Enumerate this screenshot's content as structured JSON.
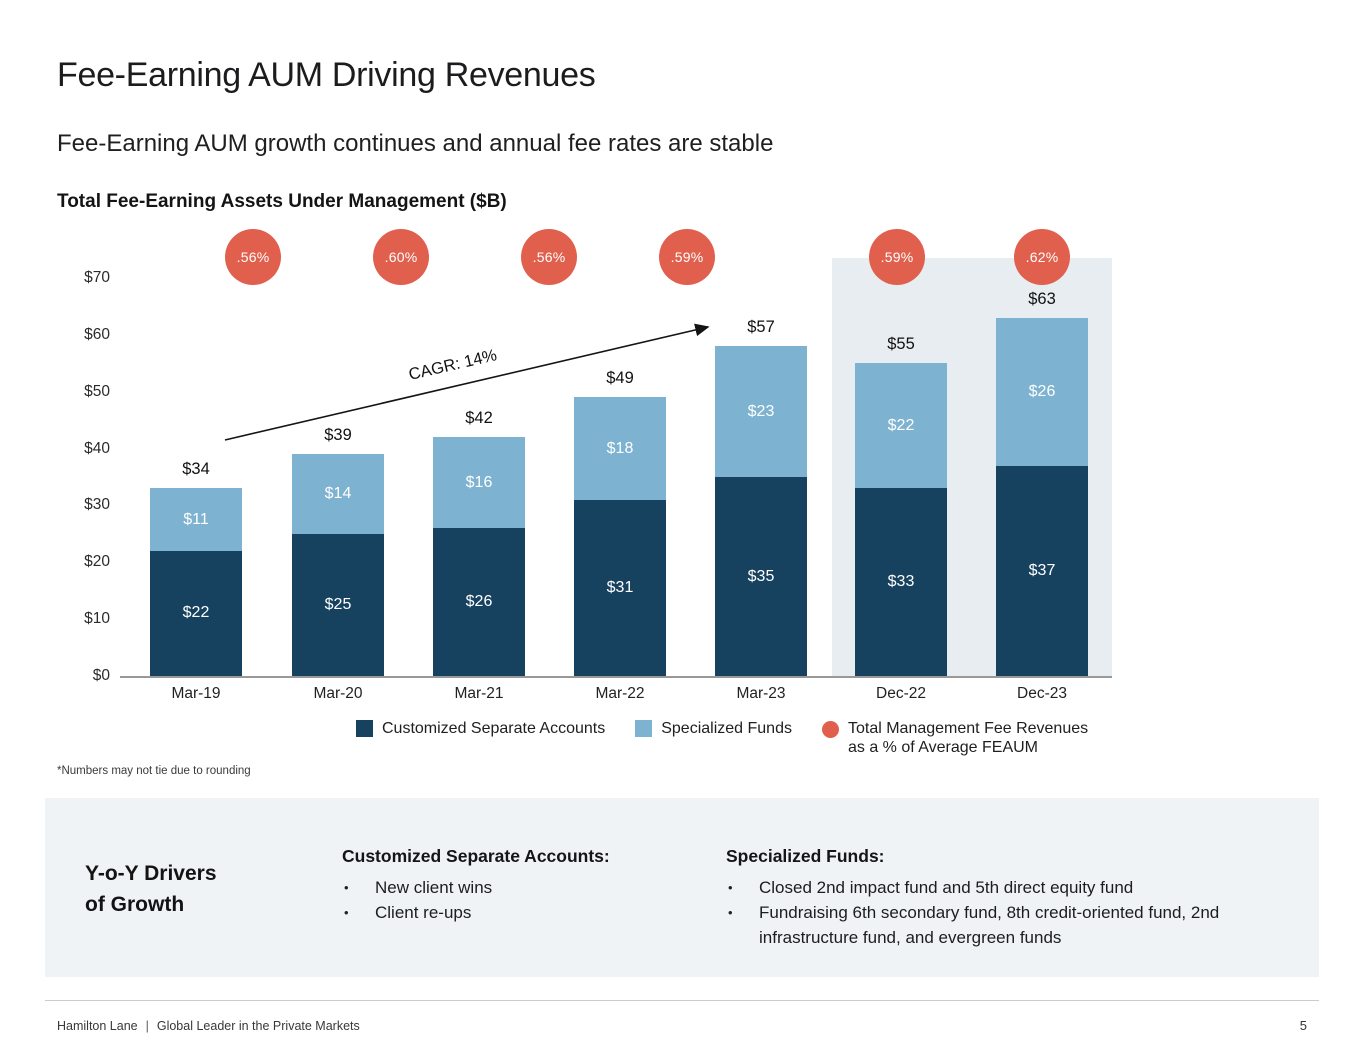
{
  "slide": {
    "title": "Fee-Earning AUM Driving Revenues",
    "subtitle": "Fee-Earning AUM growth continues and annual fee rates are stable",
    "footnote": "*Numbers may not tie due to rounding",
    "footer_brand": "Hamilton Lane",
    "footer_separator": "|",
    "footer_tagline": "Global Leader in the Private Markets",
    "page_number": "5"
  },
  "chart_data": {
    "type": "bar",
    "stacked": true,
    "title": "Total Fee-Earning Assets Under Management ($B)",
    "categories": [
      "Mar-19",
      "Mar-20",
      "Mar-21",
      "Mar-22",
      "Mar-23",
      "Dec-22",
      "Dec-23"
    ],
    "series": [
      {
        "name": "Customized Separate Accounts",
        "color": "#16425f",
        "values": [
          22,
          25,
          26,
          31,
          35,
          33,
          37
        ]
      },
      {
        "name": "Specialized Funds",
        "color": "#7db2d0",
        "values": [
          11,
          14,
          16,
          18,
          23,
          22,
          26
        ]
      }
    ],
    "totals": [
      34,
      39,
      42,
      49,
      57,
      55,
      63
    ],
    "value_prefix": "$",
    "fee_marker_labels": [
      ".56%",
      ".60%",
      ".56%",
      ".59%",
      ".59%",
      ".62%"
    ],
    "fee_marker_color": "#e0604d",
    "annotation": "CAGR: 14%",
    "ylabel": "",
    "xlabel": "",
    "ylim": [
      0,
      70
    ],
    "yticks": [
      {
        "value": 0,
        "label": "$0"
      },
      {
        "value": 10,
        "label": "$10"
      },
      {
        "value": 20,
        "label": "$20"
      },
      {
        "value": 30,
        "label": "$30"
      },
      {
        "value": 40,
        "label": "$40"
      },
      {
        "value": 50,
        "label": "$50"
      },
      {
        "value": 60,
        "label": "$60"
      },
      {
        "value": 70,
        "label": "$70"
      }
    ],
    "grid": false,
    "highlighted_categories": [
      "Dec-22",
      "Dec-23"
    ],
    "highlight_color": "#e7edf1"
  },
  "legend": {
    "items": [
      {
        "label": "Customized Separate Accounts",
        "color": "#16425f",
        "shape": "square"
      },
      {
        "label": "Specialized Funds",
        "color": "#7db2d0",
        "shape": "square"
      },
      {
        "label": "Total Management Fee Revenues\nas a % of Average FEAUM",
        "color": "#e0604d",
        "shape": "circle"
      }
    ]
  },
  "drivers": {
    "title": "Y-o-Y Drivers\nof Growth",
    "columns": [
      {
        "heading": "Customized Separate Accounts:",
        "bullets": [
          "New client wins",
          "Client re-ups"
        ]
      },
      {
        "heading": "Specialized Funds:",
        "bullets": [
          "Closed 2nd impact fund and 5th direct equity fund",
          "Fundraising 6th secondary fund, 8th credit-oriented fund, 2nd infrastructure fund, and evergreen funds"
        ]
      }
    ]
  }
}
